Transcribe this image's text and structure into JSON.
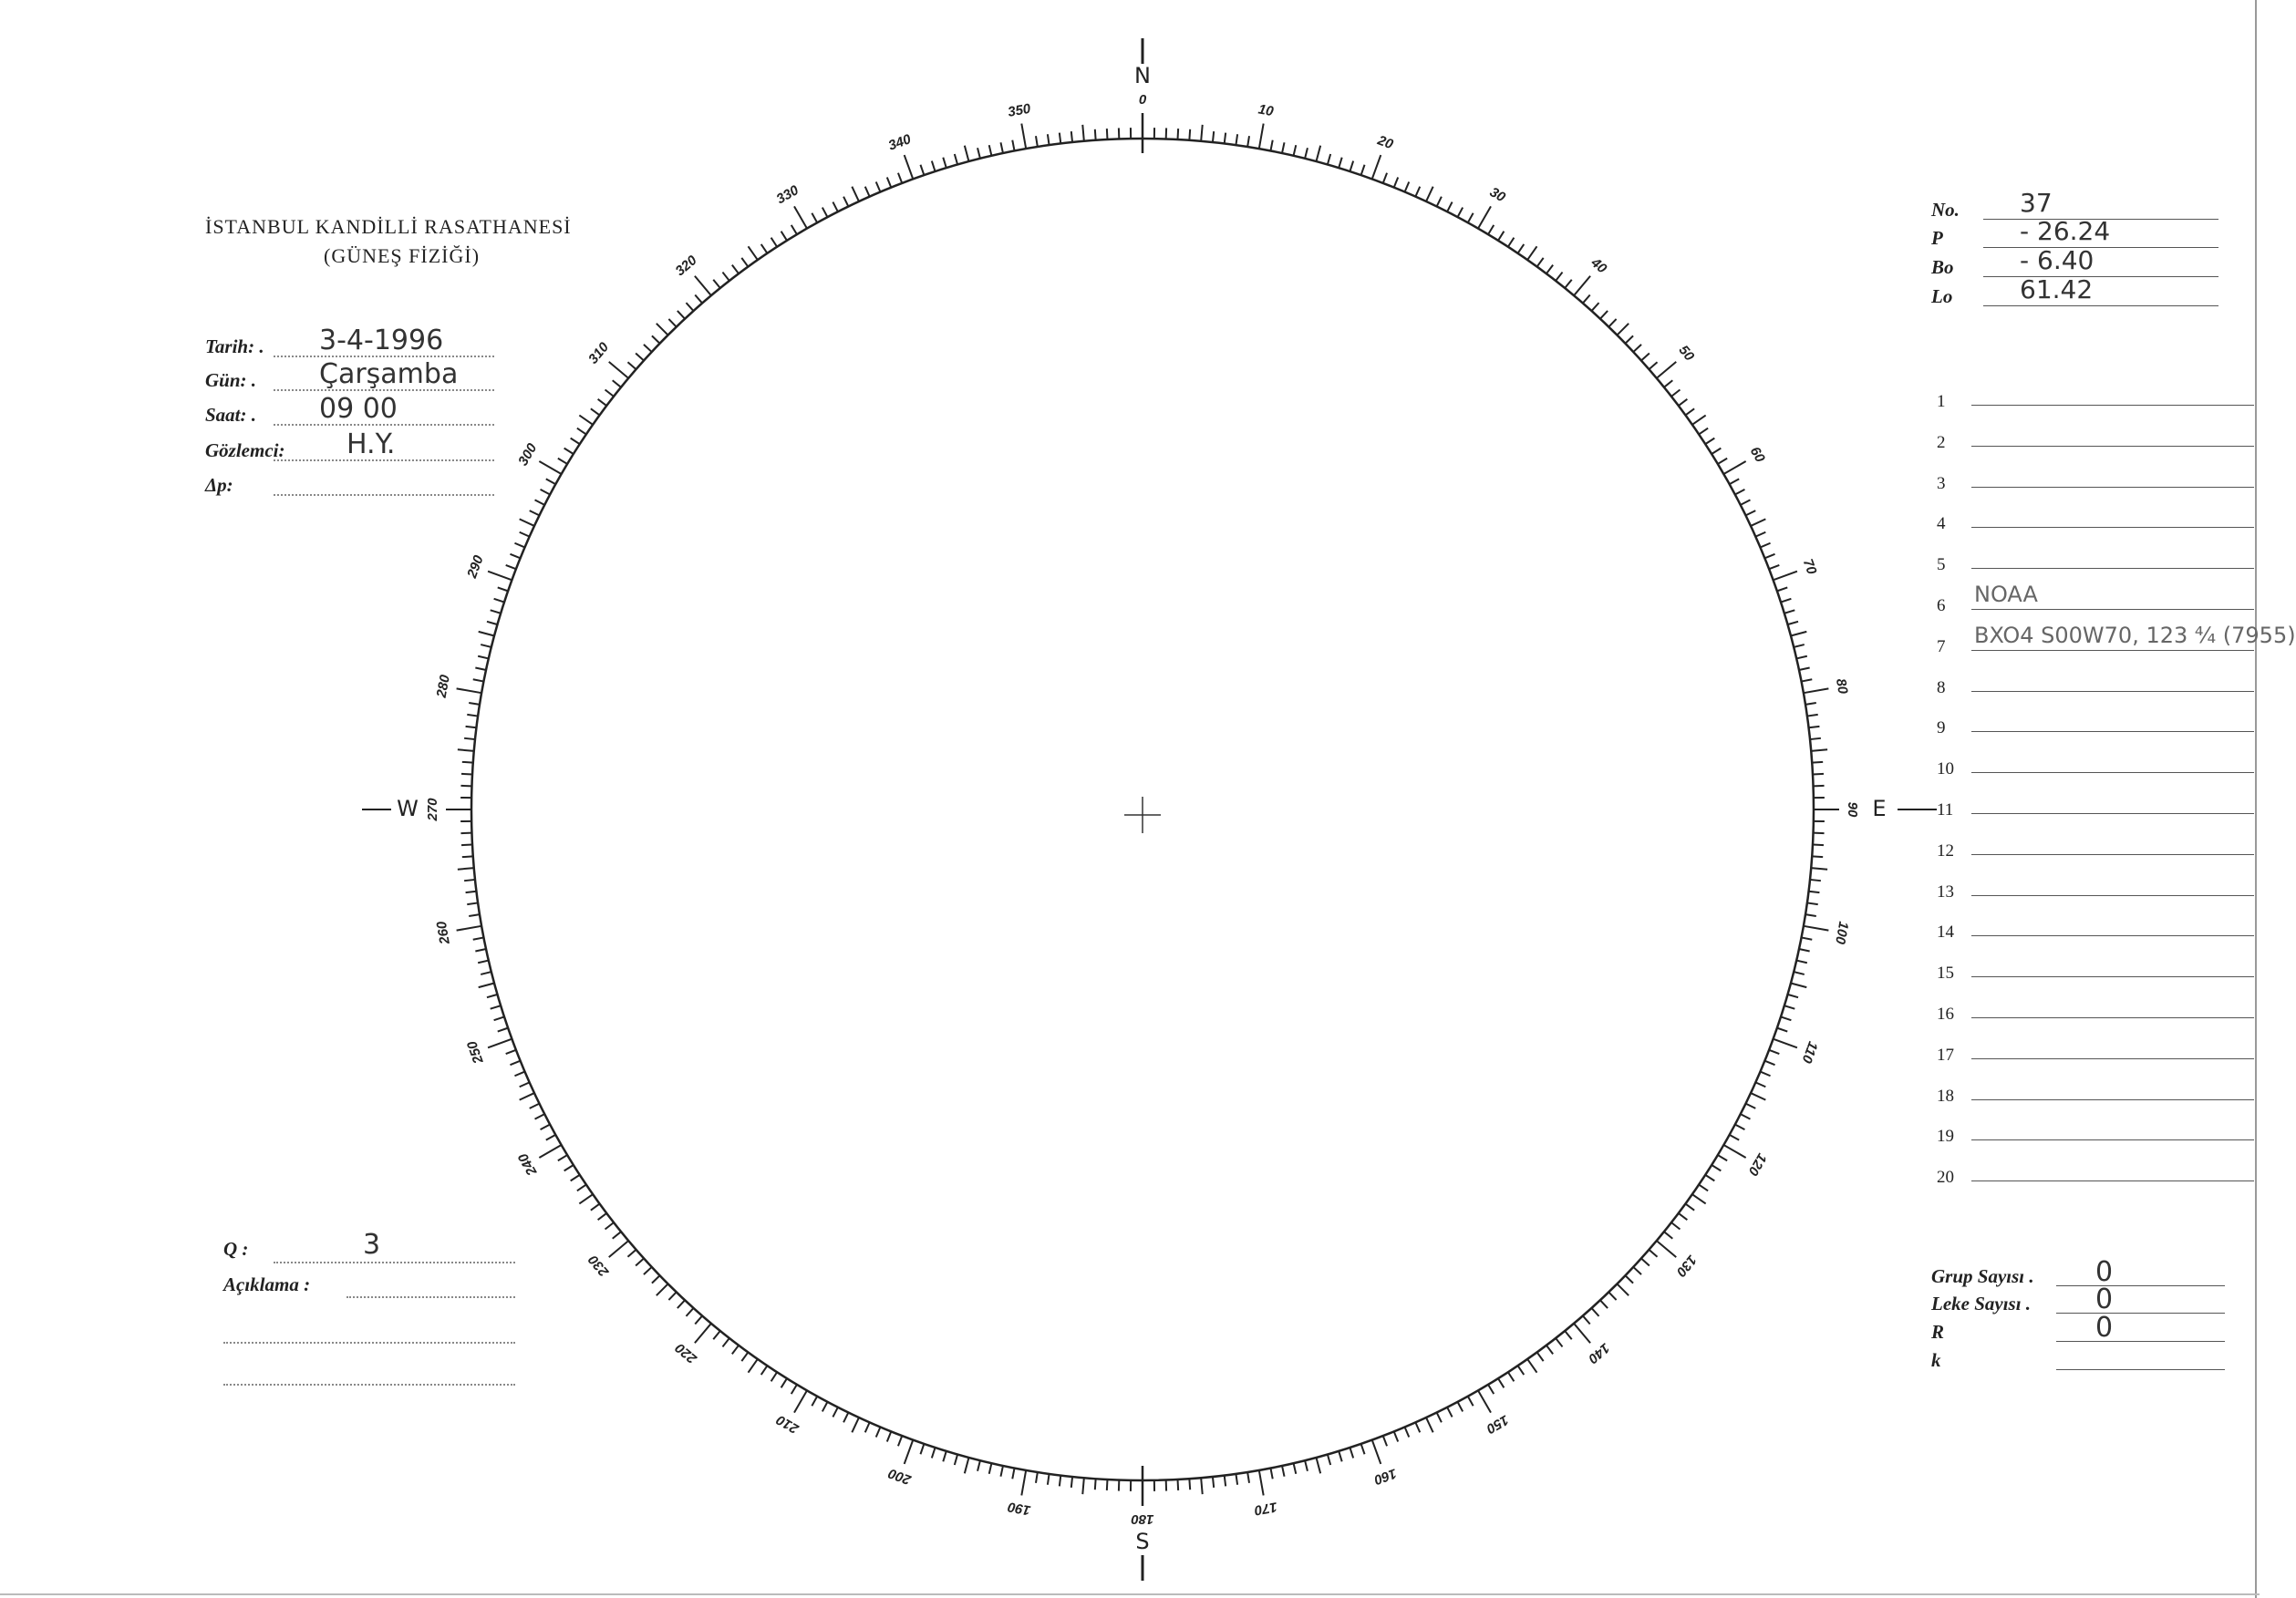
{
  "header": {
    "title": "İSTANBUL KANDİLLİ RASATHANESİ",
    "subtitle": "(GÜNEŞ FİZİĞİ)"
  },
  "fields": [
    {
      "label": "Tarih: .",
      "value": "3-4-1996"
    },
    {
      "label": "Gün: .",
      "value": "Çarşamba"
    },
    {
      "label": "Saat: .",
      "value": "09 00"
    },
    {
      "label": "Gözlemci:",
      "value": "H.Y."
    },
    {
      "label": "Δp:",
      "value": ""
    }
  ],
  "params": [
    {
      "label": "No.",
      "value": "37"
    },
    {
      "label": "P",
      "value": "- 26.24"
    },
    {
      "label": "Bo",
      "value": "- 6.40"
    },
    {
      "label": "Lo",
      "value": "61.42"
    }
  ],
  "notes": [
    {
      "n": "1",
      "text": ""
    },
    {
      "n": "2",
      "text": ""
    },
    {
      "n": "3",
      "text": ""
    },
    {
      "n": "4",
      "text": ""
    },
    {
      "n": "5",
      "text": ""
    },
    {
      "n": "6",
      "text": "NOAA"
    },
    {
      "n": "7",
      "text": "BXO4  S00W70, 123  ⁴⁄₄  (7955)"
    },
    {
      "n": "8",
      "text": ""
    },
    {
      "n": "9",
      "text": ""
    },
    {
      "n": "10",
      "text": ""
    },
    {
      "n": "11",
      "text": ""
    },
    {
      "n": "12",
      "text": ""
    },
    {
      "n": "13",
      "text": ""
    },
    {
      "n": "14",
      "text": ""
    },
    {
      "n": "15",
      "text": ""
    },
    {
      "n": "16",
      "text": ""
    },
    {
      "n": "17",
      "text": ""
    },
    {
      "n": "18",
      "text": ""
    },
    {
      "n": "19",
      "text": ""
    },
    {
      "n": "20",
      "text": ""
    }
  ],
  "counts": [
    {
      "label": "Grup Sayısı .",
      "value": "0"
    },
    {
      "label": "Leke Sayısı .",
      "value": "0"
    },
    {
      "label": "R",
      "value": "0"
    },
    {
      "label": "k",
      "value": ""
    }
  ],
  "quality": {
    "label": "Q :",
    "value": "3"
  },
  "remarks": {
    "label": "Açıklama :",
    "value": ""
  },
  "scale": {
    "labels": [
      "0",
      "10",
      "20",
      "30",
      "40",
      "50",
      "60",
      "70",
      "80",
      "90",
      "100",
      "110",
      "120",
      "130",
      "140",
      "150",
      "160",
      "170",
      "180",
      "190",
      "200",
      "210",
      "220",
      "230",
      "240",
      "250",
      "260",
      "270",
      "280",
      "290",
      "300",
      "310",
      "320",
      "330",
      "340",
      "350"
    ],
    "cardinals": {
      "north": "N",
      "east": "E",
      "south": "S",
      "west": "W"
    }
  }
}
